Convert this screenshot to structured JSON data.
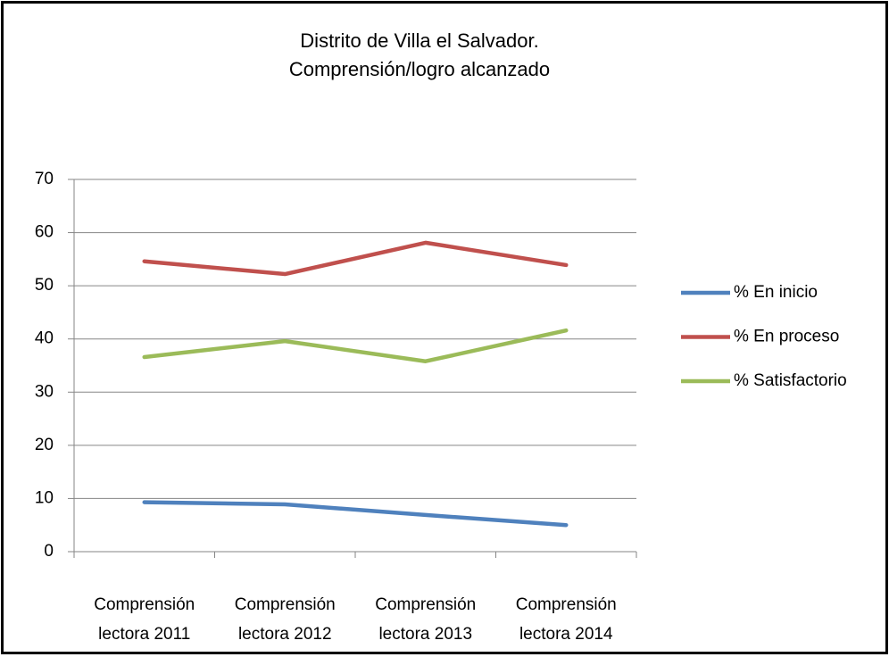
{
  "chart_data": {
    "type": "line",
    "title": "Distrito de Villa el Salvador.\nComprensión/logro alcanzado",
    "categories": [
      "Comprensión lectora 2011",
      "Comprensión lectora 2012",
      "Comprensión lectora 2013",
      "Comprensión lectora 2014"
    ],
    "series": [
      {
        "name": "% En inicio",
        "color": "#4f81bd",
        "values": [
          9.3,
          8.9,
          6.9,
          5.0
        ]
      },
      {
        "name": "% En proceso",
        "color": "#c0504d",
        "values": [
          54.6,
          52.2,
          58.1,
          53.9
        ]
      },
      {
        "name": "% Satisfactorio",
        "color": "#9bbb59",
        "values": [
          36.6,
          39.6,
          35.8,
          41.6
        ]
      }
    ],
    "ylim": [
      0,
      70
    ],
    "yticks": [
      0,
      10,
      20,
      30,
      40,
      50,
      60,
      70
    ],
    "grid": true,
    "legend": "right"
  }
}
